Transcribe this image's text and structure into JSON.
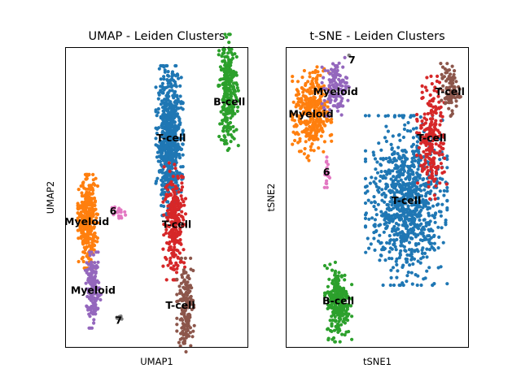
{
  "panels": [
    {
      "title": "UMAP - Leiden Clusters",
      "xlabel": "UMAP1",
      "ylabel": "UMAP2"
    },
    {
      "title": "t-SNE - Leiden Clusters",
      "xlabel": "tSNE1",
      "ylabel": "tSNE2"
    }
  ],
  "chart_data": [
    {
      "type": "scatter",
      "title": "UMAP - Leiden Clusters",
      "xlabel": "UMAP1",
      "ylabel": "UMAP2",
      "xlim": [
        0,
        10
      ],
      "ylim": [
        0,
        10
      ],
      "grid": false,
      "ticks": false,
      "clusters": [
        {
          "id": "0",
          "label": "T-cell",
          "color": "#1f77b4",
          "center": [
            5.7,
            6.9
          ],
          "spread": [
            0.38,
            1.28
          ],
          "count": 700
        },
        {
          "id": "1",
          "label": "T-cell",
          "color": "#d62728",
          "center": [
            6.0,
            4.2
          ],
          "spread": [
            0.33,
            1.0
          ],
          "count": 260
        },
        {
          "id": "2",
          "label": "Myeloid",
          "color": "#ff7f0e",
          "center": [
            1.2,
            4.2
          ],
          "spread": [
            0.28,
            0.8
          ],
          "count": 360
        },
        {
          "id": "3",
          "label": "B-cell",
          "color": "#2ca02c",
          "center": [
            8.95,
            8.5
          ],
          "spread": [
            0.28,
            1.0
          ],
          "count": 280
        },
        {
          "id": "4",
          "label": "Myeloid",
          "color": "#9467bd",
          "center": [
            1.5,
            1.9
          ],
          "spread": [
            0.22,
            0.65
          ],
          "count": 160
        },
        {
          "id": "5",
          "label": "T-cell",
          "color": "#8c564b",
          "center": [
            6.6,
            1.4
          ],
          "spread": [
            0.25,
            0.8
          ],
          "count": 160
        },
        {
          "id": "6",
          "label": "6",
          "color": "#e377c2",
          "center": [
            2.85,
            4.55
          ],
          "spread": [
            0.22,
            0.14
          ],
          "count": 22
        },
        {
          "id": "7",
          "label": "7",
          "color": "#7f7f7f",
          "center": [
            2.9,
            0.95
          ],
          "spread": [
            0.09,
            0.18
          ],
          "count": 7
        }
      ],
      "cluster_labels": [
        {
          "text": "T-cell",
          "x": 5.8,
          "y": 7.0
        },
        {
          "text": "B-cell",
          "x": 9.0,
          "y": 8.2
        },
        {
          "text": "Myeloid",
          "x": 1.15,
          "y": 4.2
        },
        {
          "text": "6",
          "x": 2.6,
          "y": 4.55
        },
        {
          "text": "T-cell",
          "x": 6.1,
          "y": 4.1
        },
        {
          "text": "Myeloid",
          "x": 1.5,
          "y": 1.9
        },
        {
          "text": "T-cell",
          "x": 6.3,
          "y": 1.4
        },
        {
          "text": "7",
          "x": 2.9,
          "y": 0.9
        }
      ]
    },
    {
      "type": "scatter",
      "title": "t-SNE - Leiden Clusters",
      "xlabel": "tSNE1",
      "ylabel": "tSNE2",
      "xlim": [
        0,
        10
      ],
      "ylim": [
        0,
        10
      ],
      "grid": false,
      "ticks": false,
      "clusters": [
        {
          "id": "0",
          "label": "T-cell",
          "color": "#1f77b4",
          "center": [
            6.6,
            4.9
          ],
          "spread": [
            1.15,
            1.45
          ],
          "count": 900
        },
        {
          "id": "1",
          "label": "T-cell",
          "color": "#d62728",
          "center": [
            8.0,
            7.0
          ],
          "spread": [
            0.42,
            1.05
          ],
          "count": 220
        },
        {
          "id": "2",
          "label": "Myeloid",
          "color": "#ff7f0e",
          "center": [
            1.4,
            7.8
          ],
          "spread": [
            0.55,
            0.8
          ],
          "count": 350
        },
        {
          "id": "3",
          "label": "B-cell",
          "color": "#2ca02c",
          "center": [
            2.85,
            1.5
          ],
          "spread": [
            0.38,
            0.68
          ],
          "count": 250
        },
        {
          "id": "4",
          "label": "Myeloid",
          "color": "#9467bd",
          "center": [
            2.7,
            8.7
          ],
          "spread": [
            0.38,
            0.5
          ],
          "count": 120
        },
        {
          "id": "5",
          "label": "T-cell",
          "color": "#8c564b",
          "center": [
            9.0,
            8.6
          ],
          "spread": [
            0.3,
            0.45
          ],
          "count": 90
        },
        {
          "id": "6",
          "label": "6",
          "color": "#e377c2",
          "center": [
            2.2,
            5.8
          ],
          "spread": [
            0.09,
            0.4
          ],
          "count": 18
        },
        {
          "id": "7",
          "label": "7",
          "color": "#7f7f7f",
          "center": [
            3.5,
            9.7
          ],
          "spread": [
            0.05,
            0.05
          ],
          "count": 2
        }
      ],
      "cluster_labels": [
        {
          "text": "7",
          "x": 3.6,
          "y": 9.6
        },
        {
          "text": "Myeloid",
          "x": 2.7,
          "y": 8.55
        },
        {
          "text": "T-cell",
          "x": 9.0,
          "y": 8.55
        },
        {
          "text": "Myeloid",
          "x": 1.35,
          "y": 7.8
        },
        {
          "text": "T-cell",
          "x": 8.0,
          "y": 7.0
        },
        {
          "text": "6",
          "x": 2.2,
          "y": 5.85
        },
        {
          "text": "T-cell",
          "x": 6.6,
          "y": 4.9
        },
        {
          "text": "B-cell",
          "x": 2.85,
          "y": 1.55
        }
      ]
    }
  ]
}
